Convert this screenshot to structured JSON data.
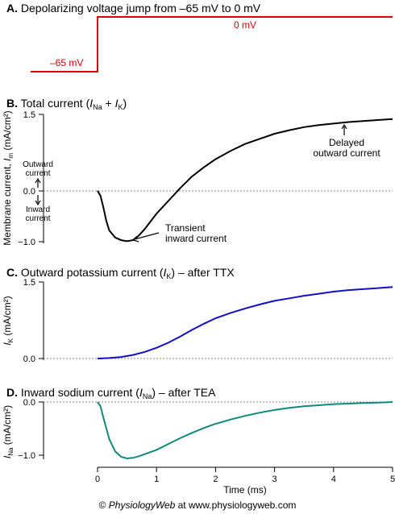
{
  "chart_data": [
    {
      "type": "line",
      "panel_letter": "A.",
      "title": "Depolarizing voltage jump from –65 mV to 0 mV",
      "x": [
        0,
        0,
        5
      ],
      "y": [
        -65,
        0,
        0
      ],
      "labels": {
        "low": "–65 mV",
        "high": "0 mV"
      },
      "color": "#e00000"
    },
    {
      "type": "line",
      "panel_letter": "B.",
      "title_pre": "Total current (",
      "title_i1": "I",
      "title_s1": "Na",
      "title_mid": " + ",
      "title_i2": "I",
      "title_s2": "K",
      "title_post": ")",
      "ylabel_pre": "Membrane current, ",
      "ylabel_i": "I",
      "ylabel_sub": "m",
      "ylabel_post": " (mA/cm²)",
      "yticks": [
        "1.5",
        "0.0",
        "−1.0"
      ],
      "ylim": [
        -1.0,
        1.5
      ],
      "xlim": [
        0,
        5
      ],
      "color": "#000000",
      "x": [
        0,
        0.05,
        0.1,
        0.15,
        0.2,
        0.3,
        0.4,
        0.5,
        0.6,
        0.7,
        0.8,
        1.0,
        1.2,
        1.4,
        1.6,
        1.8,
        2.0,
        2.25,
        2.5,
        2.75,
        3.0,
        3.25,
        3.5,
        3.75,
        4.0,
        4.25,
        4.5,
        4.75,
        5.0
      ],
      "y": [
        0.0,
        -0.1,
        -0.33,
        -0.6,
        -0.78,
        -0.92,
        -0.97,
        -0.99,
        -0.97,
        -0.88,
        -0.75,
        -0.45,
        -0.2,
        0.05,
        0.28,
        0.46,
        0.62,
        0.78,
        0.92,
        1.02,
        1.12,
        1.19,
        1.25,
        1.29,
        1.32,
        1.35,
        1.37,
        1.39,
        1.41
      ],
      "annotations": {
        "outward": [
          "Outward",
          "current"
        ],
        "inward": [
          "Inward",
          "current"
        ],
        "transient": [
          "Transient",
          "inward current"
        ],
        "delayed": [
          "Delayed",
          "outward current"
        ]
      }
    },
    {
      "type": "line",
      "panel_letter": "C.",
      "title_pre": "Outward potassium current (",
      "title_i": "I",
      "title_sub": "K",
      "title_post": ") – after TTX",
      "ylabel_i": "I",
      "ylabel_sub": "K",
      "ylabel_post": " (mA/cm²)",
      "yticks": [
        "1.5",
        "0.0"
      ],
      "ylim": [
        0,
        1.5
      ],
      "xlim": [
        0,
        5
      ],
      "color": "#1010cc",
      "x": [
        0,
        0.2,
        0.4,
        0.6,
        0.8,
        1.0,
        1.2,
        1.4,
        1.6,
        1.8,
        2.0,
        2.25,
        2.5,
        2.75,
        3.0,
        3.25,
        3.5,
        3.75,
        4.0,
        4.25,
        4.5,
        4.75,
        5.0
      ],
      "y": [
        0.0,
        0.01,
        0.03,
        0.07,
        0.13,
        0.21,
        0.31,
        0.43,
        0.56,
        0.68,
        0.79,
        0.89,
        0.98,
        1.06,
        1.13,
        1.18,
        1.23,
        1.27,
        1.31,
        1.34,
        1.36,
        1.38,
        1.4
      ]
    },
    {
      "type": "line",
      "panel_letter": "D.",
      "title_pre": "Inward sodium current (",
      "title_i": "I",
      "title_sub": "Na",
      "title_post": ") – after TEA",
      "ylabel_i": "I",
      "ylabel_sub": "Na",
      "ylabel_post": " (mA/cm²)",
      "yticks": [
        "0.0",
        "−1.0"
      ],
      "ylim": [
        -1.1,
        0
      ],
      "xlim": [
        0,
        5
      ],
      "xticks": [
        "0",
        "1",
        "2",
        "3",
        "4",
        "5"
      ],
      "xlabel": "Time (ms)",
      "color": "#0d8a80",
      "x": [
        0,
        0.05,
        0.1,
        0.2,
        0.3,
        0.4,
        0.5,
        0.6,
        0.7,
        0.8,
        1.0,
        1.2,
        1.4,
        1.6,
        1.8,
        2.0,
        2.25,
        2.5,
        2.75,
        3.0,
        3.25,
        3.5,
        3.75,
        4.0,
        4.25,
        4.5,
        4.75,
        5.0
      ],
      "y": [
        0.0,
        -0.08,
        -0.3,
        -0.7,
        -0.93,
        -1.03,
        -1.06,
        -1.05,
        -1.02,
        -0.98,
        -0.9,
        -0.79,
        -0.68,
        -0.58,
        -0.49,
        -0.41,
        -0.33,
        -0.26,
        -0.2,
        -0.15,
        -0.11,
        -0.08,
        -0.06,
        -0.04,
        -0.03,
        -0.02,
        -0.01,
        0.0
      ]
    }
  ],
  "footer": {
    "copyright": "© ",
    "brand": "PhysiologyWeb",
    "rest": " at www.physiologyweb.com"
  }
}
